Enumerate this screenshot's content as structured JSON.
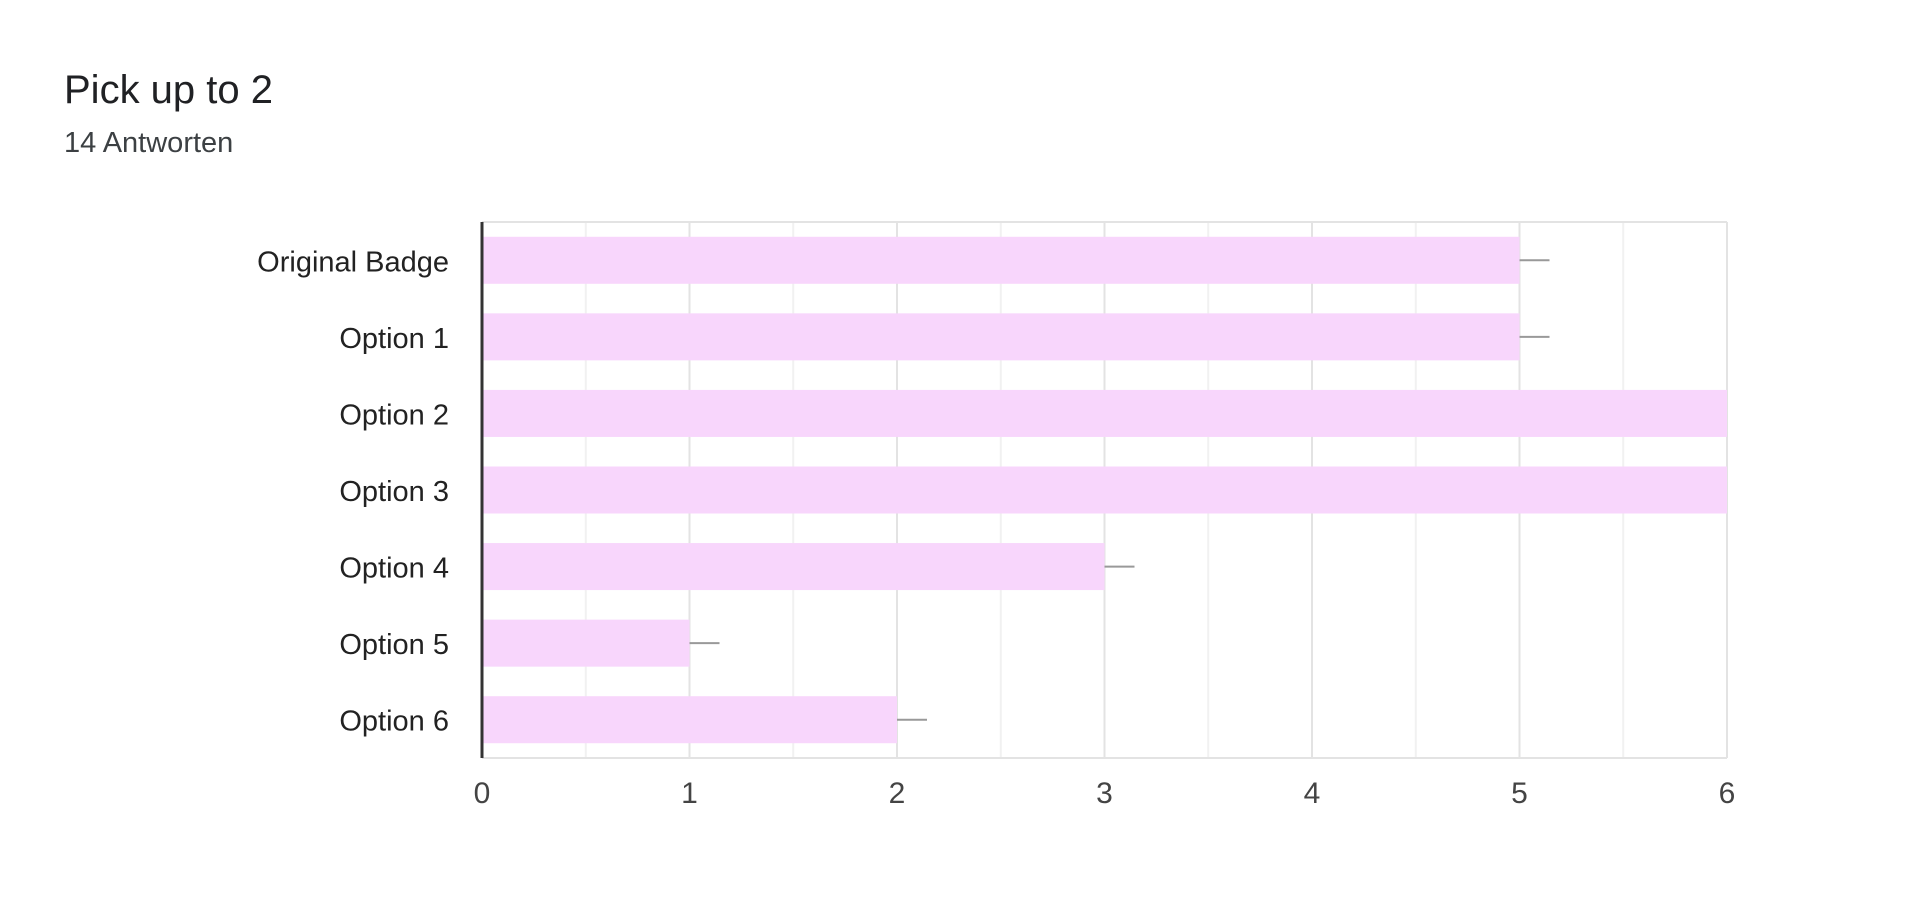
{
  "header": {
    "title": "Pick up to 2",
    "response_count": "14 Antworten"
  },
  "colors": {
    "bar": "#f8d6fc",
    "axis": "#333333",
    "grid_major": "#e3e3e3",
    "grid_minor": "#f1f1f1",
    "tick_text": "#444444",
    "label_text": "#222222",
    "error_bar": "#999999"
  },
  "chart_data": {
    "type": "bar",
    "orientation": "horizontal",
    "title": "Pick up to 2",
    "subtitle": "14 Antworten",
    "categories": [
      "Original Badge",
      "Option 1",
      "Option 2",
      "Option 3",
      "Option 4",
      "Option 5",
      "Option 6"
    ],
    "values": [
      5,
      5,
      6,
      6,
      3,
      1,
      2
    ],
    "xlim": [
      0,
      6
    ],
    "xticks": [
      0,
      1,
      2,
      3,
      4,
      5,
      6
    ],
    "grid": true,
    "legend": "none"
  }
}
